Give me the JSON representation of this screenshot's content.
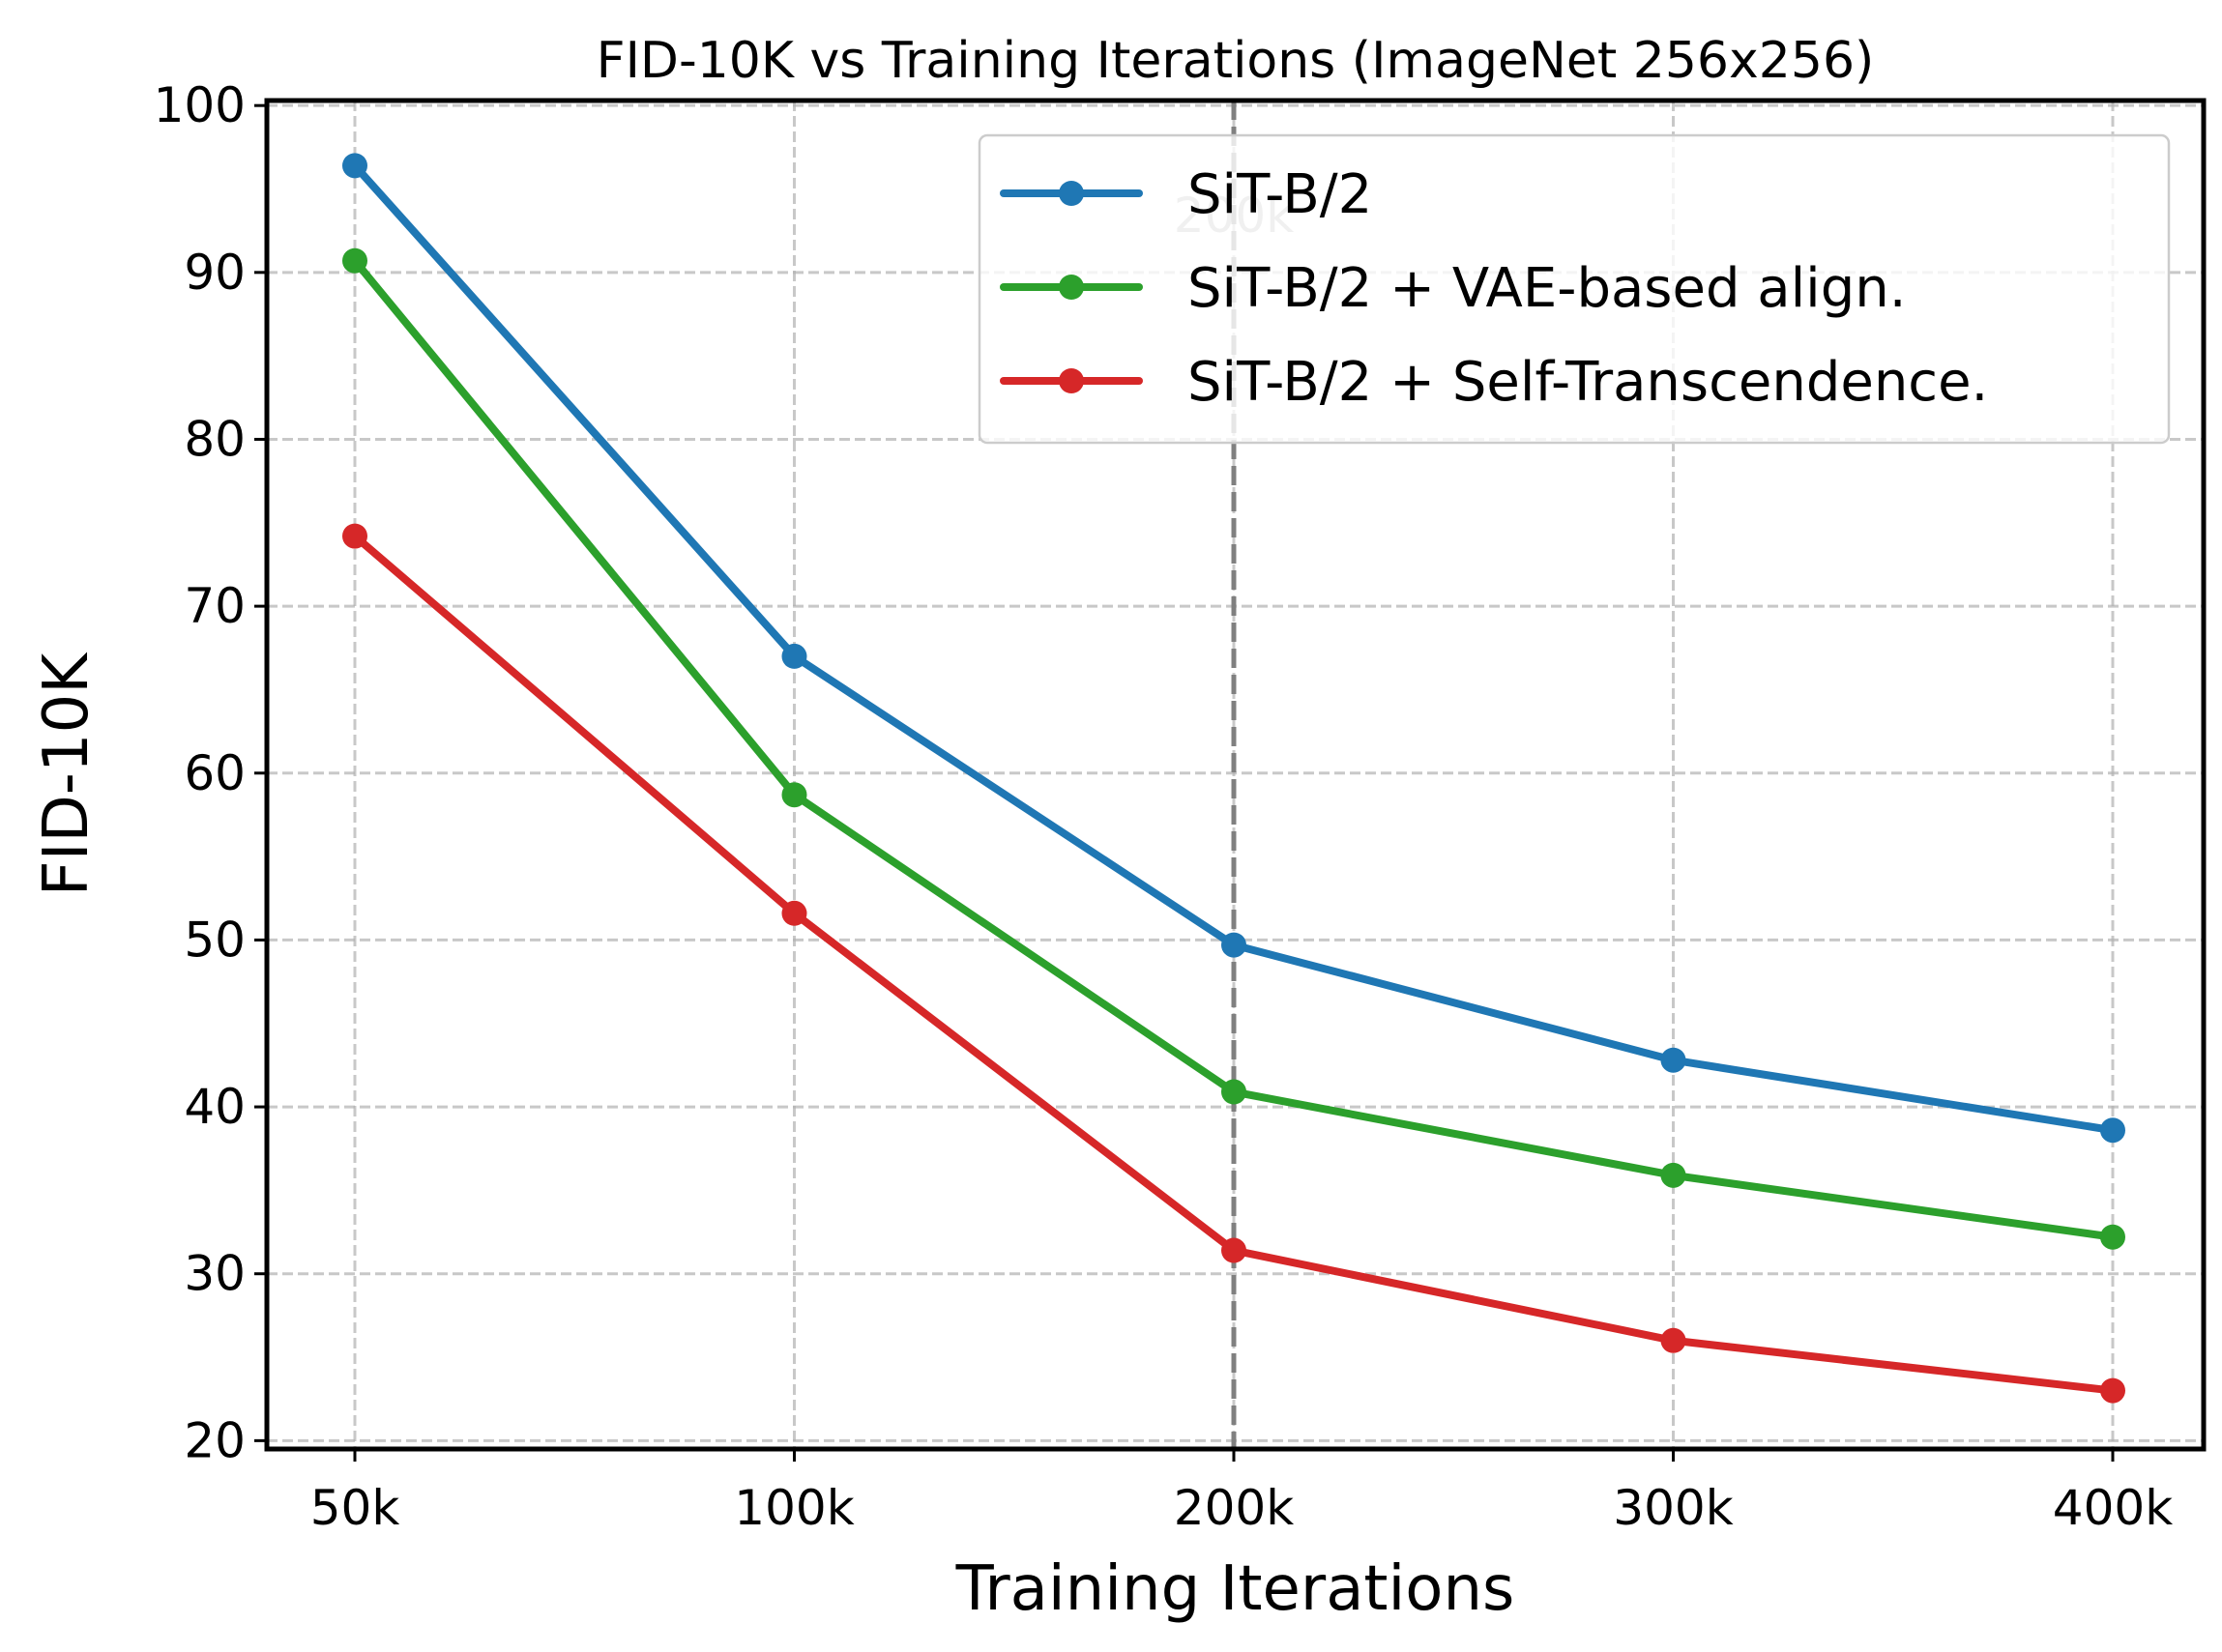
{
  "chart_data": {
    "type": "line",
    "title": "FID-10K vs Training Iterations (ImageNet 256x256)",
    "xlabel": "Training Iterations",
    "ylabel": "FID-10K",
    "categories": [
      "50k",
      "100k",
      "200k",
      "300k",
      "400k"
    ],
    "ylim": [
      19.5,
      100.3
    ],
    "yticks": [
      20,
      30,
      40,
      50,
      60,
      70,
      80,
      90,
      100
    ],
    "grid": true,
    "legend_position": "top-right",
    "vline": {
      "category": "200k",
      "label": "200k",
      "color": "#808080"
    },
    "series": [
      {
        "name": "SiT-B/2",
        "color": "#1f77b4",
        "values": [
          96.4,
          67.0,
          49.7,
          42.8,
          38.6
        ]
      },
      {
        "name": "SiT-B/2 + VAE-based align.",
        "color": "#2ca02c",
        "values": [
          90.7,
          58.7,
          40.9,
          35.9,
          32.2
        ]
      },
      {
        "name": "SiT-B/2 + Self-Transcendence.",
        "color": "#d62728",
        "values": [
          74.2,
          51.6,
          31.4,
          26.0,
          23.0
        ]
      }
    ]
  }
}
